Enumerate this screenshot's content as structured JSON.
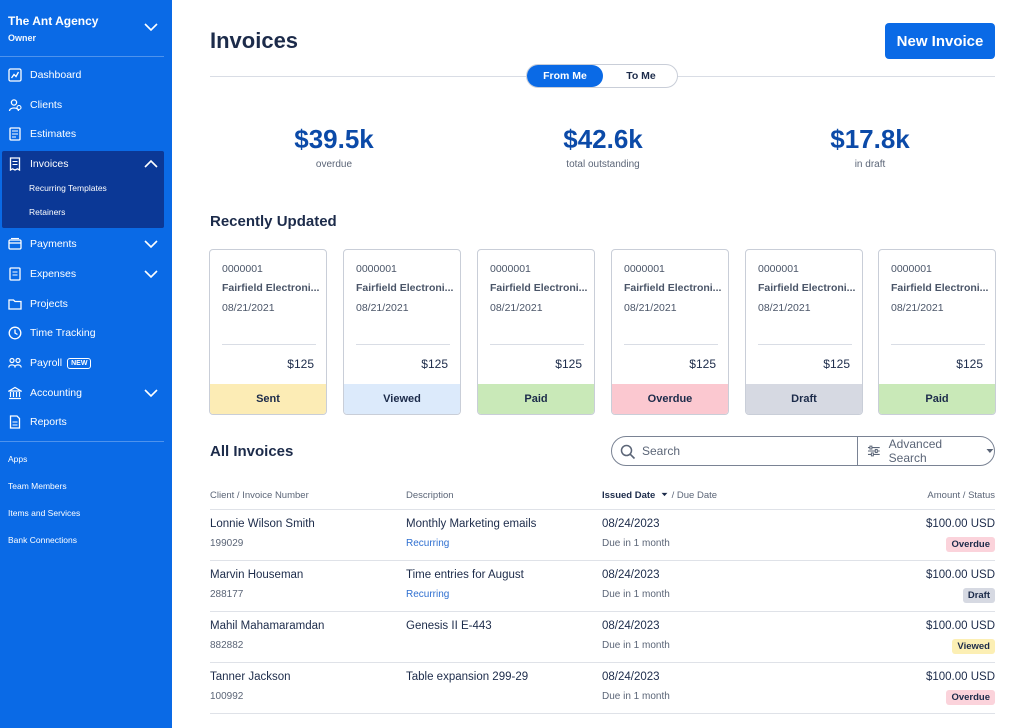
{
  "app": {
    "org_name": "The Ant Agency",
    "org_role": "Owner"
  },
  "colors": {
    "sidebar": "#0a6ae6",
    "sidebar_active": "#0b3896",
    "accent": "#0a6ae6",
    "stat_value": "#0b4aa8",
    "status_sent": "#fcecb5",
    "status_viewed": "#dceafb",
    "status_paid": "#c9e9b8",
    "status_overdue": "#fbc8d0",
    "status_draft": "#d6d9e2",
    "badge_overdue": "#fbd3db",
    "badge_draft": "#d6d9e2",
    "badge_viewed": "#fcefb4"
  },
  "sidebar": {
    "items": [
      {
        "label": "Dashboard",
        "icon": "dashboard-icon"
      },
      {
        "label": "Clients",
        "icon": "clients-icon"
      },
      {
        "label": "Estimates",
        "icon": "estimates-icon"
      },
      {
        "label": "Invoices",
        "icon": "invoices-icon",
        "active": true
      },
      {
        "label": "Payments",
        "icon": "payments-icon"
      },
      {
        "label": "Expenses",
        "icon": "expenses-icon"
      },
      {
        "label": "Projects",
        "icon": "projects-icon"
      },
      {
        "label": "Time Tracking",
        "icon": "clock-icon"
      },
      {
        "label": "Payroll",
        "icon": "payroll-icon",
        "badge": "NEW"
      },
      {
        "label": "Accounting",
        "icon": "accounting-icon"
      },
      {
        "label": "Reports",
        "icon": "reports-icon"
      }
    ],
    "invoice_subitems": [
      "Recurring Templates",
      "Retainers"
    ],
    "links": [
      "Apps",
      "Team Members",
      "Items and Services",
      "Bank Connections"
    ]
  },
  "header": {
    "title": "Invoices",
    "new_button": "New Invoice",
    "toggle": {
      "active": "From Me",
      "inactive": "To Me"
    }
  },
  "stats": [
    {
      "value": "$39.5k",
      "label": "overdue"
    },
    {
      "value": "$42.6k",
      "label": "total outstanding"
    },
    {
      "value": "$17.8k",
      "label": "in draft"
    }
  ],
  "recent": {
    "title": "Recently Updated",
    "cards": [
      {
        "number": "0000001",
        "client": "Fairfield Electroni...",
        "date": "08/21/2021",
        "amount": "$125",
        "status": "Sent"
      },
      {
        "number": "0000001",
        "client": "Fairfield Electroni...",
        "date": "08/21/2021",
        "amount": "$125",
        "status": "Viewed"
      },
      {
        "number": "0000001",
        "client": "Fairfield Electroni...",
        "date": "08/21/2021",
        "amount": "$125",
        "status": "Paid"
      },
      {
        "number": "0000001",
        "client": "Fairfield Electroni...",
        "date": "08/21/2021",
        "amount": "$125",
        "status": "Overdue"
      },
      {
        "number": "0000001",
        "client": "Fairfield Electroni...",
        "date": "08/21/2021",
        "amount": "$125",
        "status": "Draft"
      },
      {
        "number": "0000001",
        "client": "Fairfield Electroni...",
        "date": "08/21/2021",
        "amount": "$125",
        "status": "Paid"
      }
    ]
  },
  "all_invoices": {
    "title": "All Invoices",
    "search_placeholder": "Search",
    "advanced_search": "Advanced Search",
    "columns": {
      "client": "Client / Invoice Number",
      "description": "Description",
      "issued": "Issued Date",
      "due": " / Due Date",
      "amount": "Amount / Status"
    },
    "rows": [
      {
        "client": "Lonnie Wilson Smith",
        "number": "199029",
        "description": "Monthly Marketing emails",
        "recurring": "Recurring",
        "issued": "08/24/2023",
        "due": "Due in 1 month",
        "amount": "$100.00 USD",
        "status": "Overdue"
      },
      {
        "client": "Marvin Houseman",
        "number": "288177",
        "description": "Time entries for August",
        "recurring": "Recurring",
        "issued": "08/24/2023",
        "due": "Due in 1 month",
        "amount": "$100.00 USD",
        "status": "Draft"
      },
      {
        "client": "Mahil Mahamaramdan",
        "number": "882882",
        "description": "Genesis II E-443",
        "recurring": "",
        "issued": "08/24/2023",
        "due": "Due in 1 month",
        "amount": "$100.00 USD",
        "status": "Viewed"
      },
      {
        "client": "Tanner Jackson",
        "number": "100992",
        "description": "Table expansion 299-29",
        "recurring": "",
        "issued": "08/24/2023",
        "due": "Due in 1 month",
        "amount": "$100.00 USD",
        "status": "Overdue"
      }
    ]
  }
}
